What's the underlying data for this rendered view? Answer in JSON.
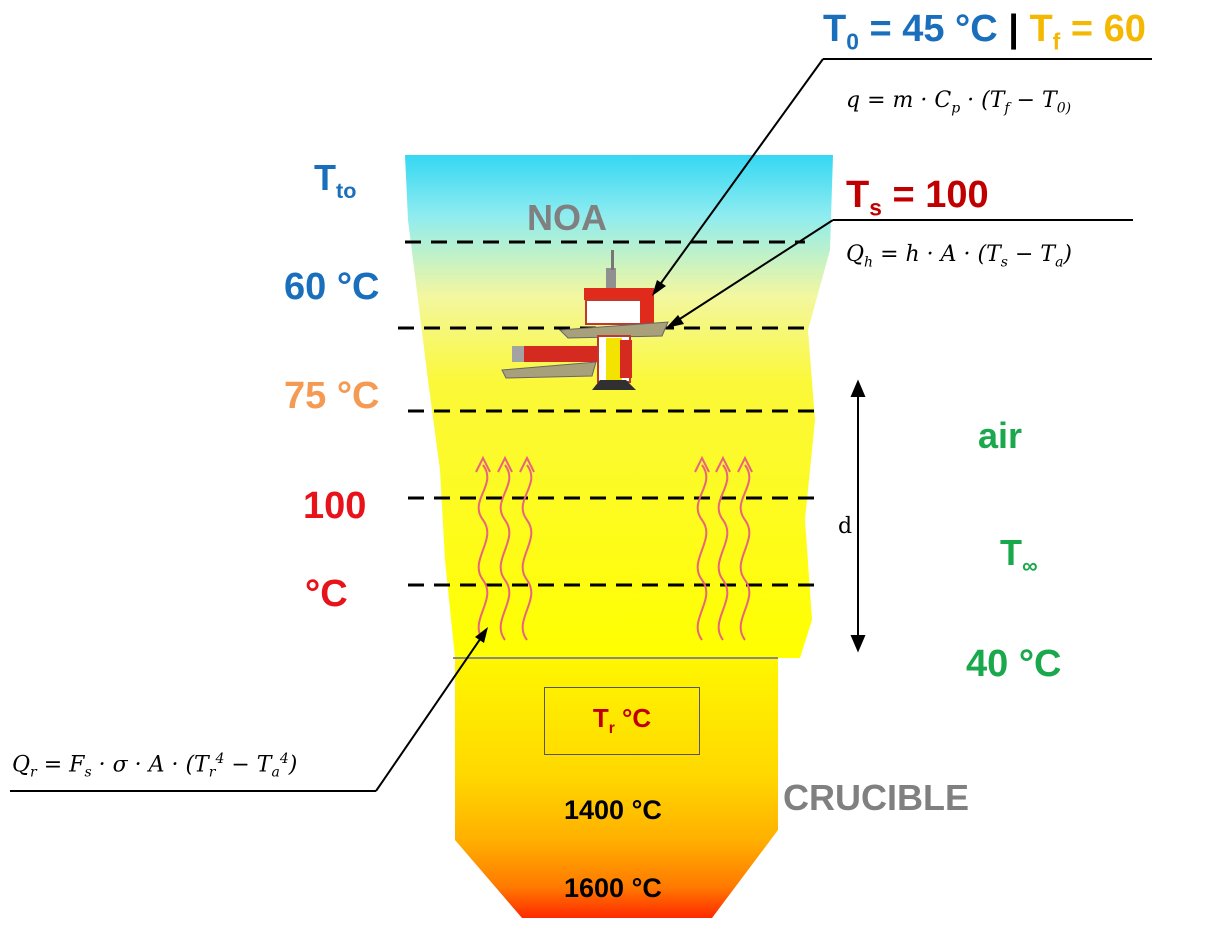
{
  "header": {
    "t0": "T",
    "t0_sub": "0",
    "t0_value": " = 45 °C",
    "separator": "|",
    "tf": "T",
    "tf_sub": "f",
    "tf_value": " = 60",
    "eq_q": "q = m · C",
    "eq_q_sub": "p",
    "eq_q_rest": " · (T",
    "eq_q_rest_sub": "f",
    "eq_q_rest2": " − T",
    "eq_q_rest2_sub": "0)"
  },
  "surface": {
    "ts": "T",
    "ts_sub": "s",
    "ts_value": " = 100",
    "eq_qh": "Q",
    "eq_qh_sub": "h",
    "eq_qh_rest": " = h · A · (T",
    "eq_qh_rest_sub": "s",
    "eq_qh_rest2": " − T",
    "eq_qh_rest2_sub": "a",
    "eq_qh_end": ")"
  },
  "left_labels": {
    "tto": "T",
    "tto_sub": "to",
    "t60": "60 °C",
    "t75": "75 °C",
    "t100": "100",
    "t_deg": "°C"
  },
  "zones": {
    "noa": "NOA",
    "crucible": "CRUCIBLE",
    "tr": "T",
    "tr_sub": "r",
    "tr_unit": " °C",
    "t1400": "1400 °C",
    "t1600": "1600 °C"
  },
  "air": {
    "label": "air",
    "tinf": "T",
    "tinf_sub": "∞",
    "t40": "40 °C",
    "d": "d"
  },
  "radiation_eq": {
    "q": "Q",
    "q_sub": "r",
    "rest1": " = F",
    "rest1_sub": "s",
    "rest2": " · σ · A · (T",
    "rest2_sub": "r",
    "rest2_sup": "4",
    "rest3": " − T",
    "rest3_sub": "a",
    "rest3_sup": "4",
    "end": ")"
  },
  "colors": {
    "blue": "#1a6fbd",
    "gold": "#f5b800",
    "red": "#e8121b",
    "dark_red": "#c00000",
    "orange": "#f59a52",
    "green": "#1aa84c",
    "gray": "#808080"
  }
}
